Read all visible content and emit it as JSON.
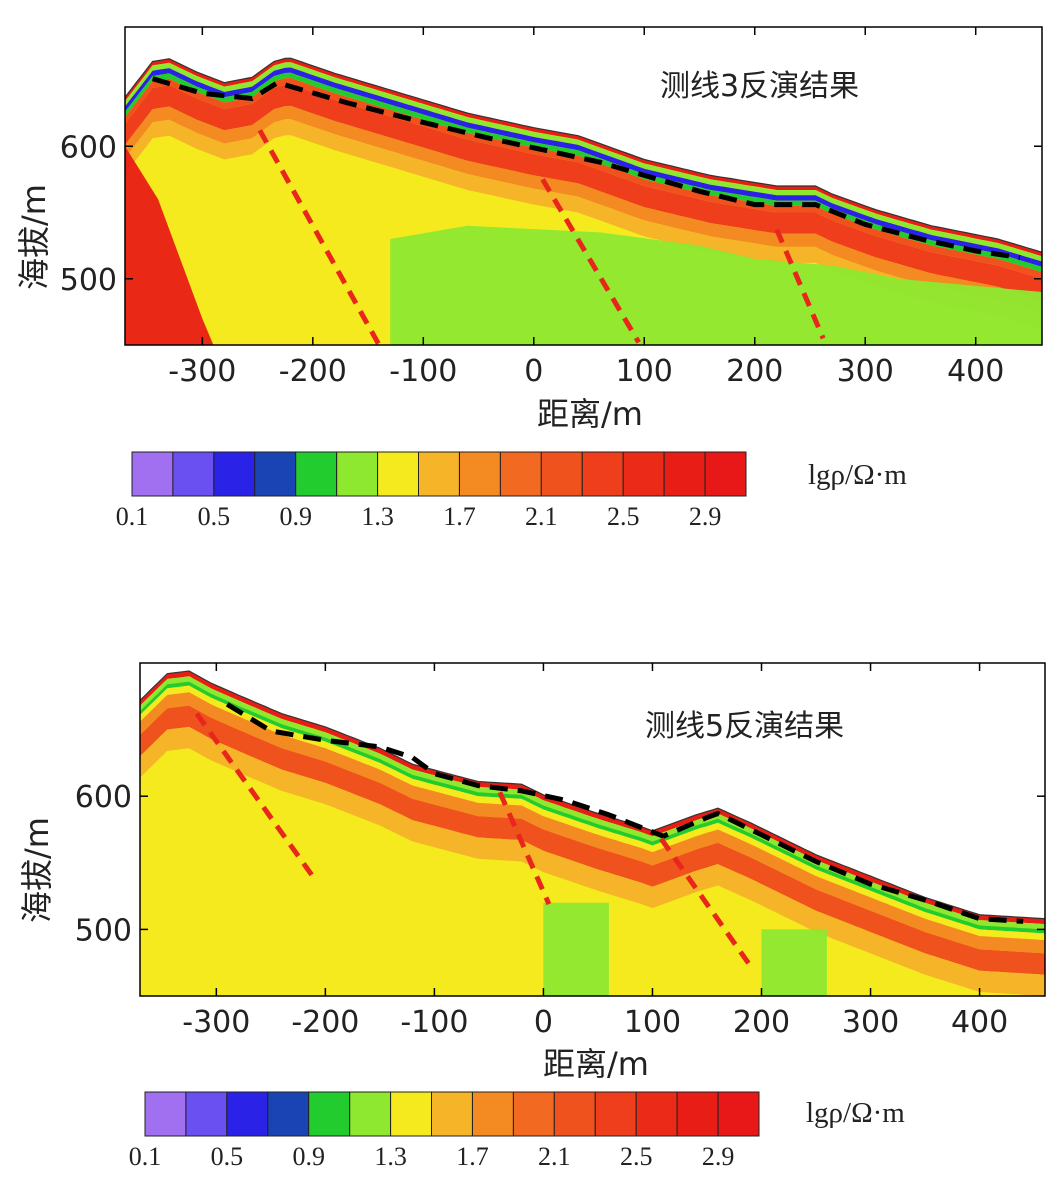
{
  "chart_data": [
    {
      "type": "heatmap",
      "title": "测线3反演结果",
      "xlabel": "距离/m",
      "ylabel": "海拔/m",
      "xlim": [
        -370,
        460
      ],
      "ylim": [
        450,
        690
      ],
      "xticks": [
        -300,
        -200,
        -100,
        0,
        100,
        200,
        300,
        400
      ],
      "yticks": [
        500,
        600
      ],
      "surface": [
        [
          -370,
          637
        ],
        [
          -345,
          664
        ],
        [
          -330,
          666
        ],
        [
          -305,
          656
        ],
        [
          -280,
          648
        ],
        [
          -255,
          652
        ],
        [
          -235,
          664
        ],
        [
          -222,
          667
        ],
        [
          -180,
          655
        ],
        [
          -120,
          640
        ],
        [
          -60,
          625
        ],
        [
          0,
          614
        ],
        [
          40,
          608
        ],
        [
          100,
          590
        ],
        [
          160,
          578
        ],
        [
          220,
          570
        ],
        [
          255,
          570
        ],
        [
          270,
          564
        ],
        [
          310,
          552
        ],
        [
          360,
          540
        ],
        [
          420,
          530
        ],
        [
          460,
          520
        ]
      ],
      "conductive_layer_boundary": [
        [
          -345,
          651
        ],
        [
          -300,
          640
        ],
        [
          -255,
          636
        ],
        [
          -232,
          648
        ],
        [
          -170,
          633
        ],
        [
          -100,
          618
        ],
        [
          -40,
          606
        ],
        [
          10,
          597
        ],
        [
          60,
          588
        ],
        [
          100,
          578
        ],
        [
          150,
          566
        ],
        [
          200,
          556
        ],
        [
          255,
          556
        ],
        [
          300,
          541
        ],
        [
          350,
          530
        ],
        [
          400,
          521
        ],
        [
          440,
          516
        ]
      ],
      "faults": [
        [
          [
            -248,
            612
          ],
          [
            -140,
            450
          ]
        ],
        [
          [
            8,
            575
          ],
          [
            95,
            452
          ]
        ],
        [
          [
            220,
            537
          ],
          [
            262,
            455
          ]
        ]
      ],
      "colorbar": {
        "label": "lgρ/Ω·m",
        "min": 0.1,
        "max": 3.1,
        "step": 0.2,
        "tick_labels": [
          "0.1",
          "0.5",
          "0.9",
          "1.3",
          "1.7",
          "2.1",
          "2.5",
          "2.9"
        ],
        "colors": [
          "#a070f0",
          "#6a50f0",
          "#2a22e6",
          "#1a44b4",
          "#22cc2e",
          "#8ee830",
          "#f4ea1e",
          "#f6b428",
          "#f48a22",
          "#f26a22",
          "#f0521e",
          "#ee3e1c",
          "#ec2a18",
          "#e81e16",
          "#e81818"
        ]
      }
    },
    {
      "type": "heatmap",
      "title": "测线5反演结果",
      "xlabel": "距离/m",
      "ylabel": "海拔/m",
      "xlim": [
        -370,
        460
      ],
      "ylim": [
        450,
        700
      ],
      "xticks": [
        -300,
        -200,
        -100,
        0,
        100,
        200,
        300,
        400
      ],
      "yticks": [
        500,
        600
      ],
      "surface": [
        [
          -370,
          672
        ],
        [
          -345,
          692
        ],
        [
          -325,
          694
        ],
        [
          -305,
          685
        ],
        [
          -280,
          676
        ],
        [
          -240,
          662
        ],
        [
          -200,
          652
        ],
        [
          -150,
          636
        ],
        [
          -120,
          624
        ],
        [
          -60,
          611
        ],
        [
          -20,
          609
        ],
        [
          0,
          601
        ],
        [
          50,
          587
        ],
        [
          90,
          577
        ],
        [
          100,
          574
        ],
        [
          140,
          586
        ],
        [
          160,
          591
        ],
        [
          190,
          580
        ],
        [
          250,
          556
        ],
        [
          300,
          540
        ],
        [
          350,
          524
        ],
        [
          400,
          511
        ],
        [
          460,
          508
        ]
      ],
      "conductive_layer_boundary": [
        [
          -290,
          669
        ],
        [
          -250,
          649
        ],
        [
          -200,
          642
        ],
        [
          -150,
          637
        ],
        [
          -120,
          629
        ],
        [
          -100,
          617
        ],
        [
          -60,
          608
        ],
        [
          -20,
          604
        ],
        [
          20,
          597
        ],
        [
          60,
          586
        ],
        [
          110,
          570
        ],
        [
          150,
          584
        ],
        [
          160,
          587
        ],
        [
          200,
          571
        ],
        [
          250,
          551
        ],
        [
          300,
          534
        ],
        [
          350,
          522
        ],
        [
          400,
          508
        ],
        [
          440,
          506
        ]
      ],
      "faults": [
        [
          [
            -318,
            662
          ],
          [
            -210,
            538
          ]
        ],
        [
          [
            -40,
            603
          ],
          [
            5,
            519
          ]
        ],
        [
          [
            108,
            568
          ],
          [
            192,
            470
          ]
        ]
      ],
      "colorbar": {
        "label": "lgρ/Ω·m",
        "min": 0.1,
        "max": 3.1,
        "step": 0.2,
        "tick_labels": [
          "0.1",
          "0.5",
          "0.9",
          "1.3",
          "1.7",
          "2.1",
          "2.5",
          "2.9"
        ],
        "colors": [
          "#a070f0",
          "#6a50f0",
          "#2a22e6",
          "#1a44b4",
          "#22cc2e",
          "#8ee830",
          "#f4ea1e",
          "#f6b428",
          "#f48a22",
          "#f26a22",
          "#f0521e",
          "#ee3e1c",
          "#ec2a18",
          "#e81e16",
          "#e81818"
        ]
      }
    }
  ]
}
